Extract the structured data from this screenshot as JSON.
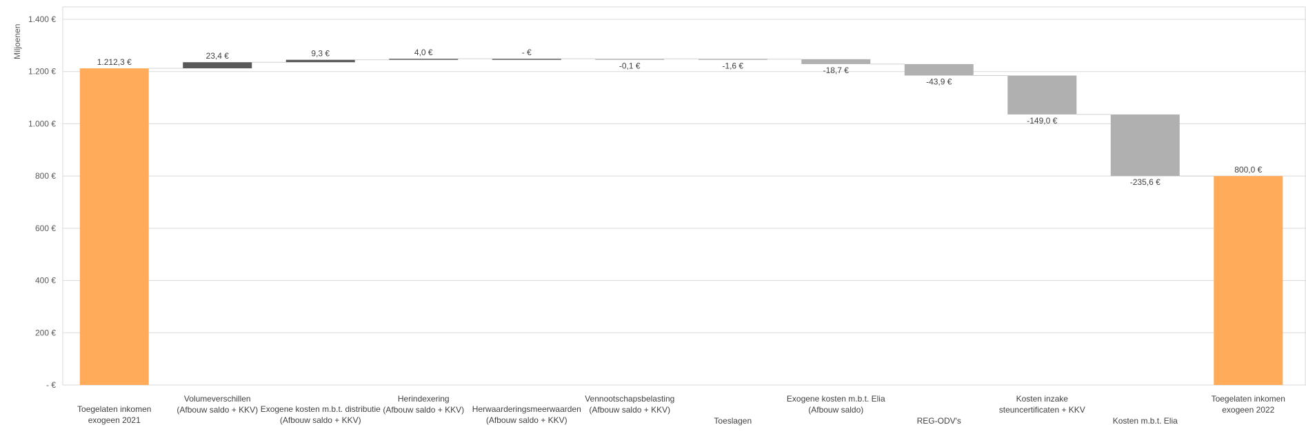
{
  "chart_data": {
    "type": "bar",
    "subtype": "waterfall",
    "title": "",
    "ylabel": "Miljoenen",
    "ylim": [
      0,
      1400
    ],
    "yticks": [
      0,
      200,
      400,
      600,
      800,
      1000,
      1200,
      1400
    ],
    "ytick_labels": [
      "- €",
      "200 €",
      "400 €",
      "600 €",
      "800 €",
      "1.000 €",
      "1.200 €",
      "1.400 €"
    ],
    "grid": true,
    "legend": "none",
    "colors": {
      "total": "#FFAB5A",
      "increase": "#595959",
      "decrease": "#B0B0B0",
      "connector": "#D0D0D0",
      "grid": "#D9D9D9"
    },
    "categories": [
      {
        "lines": [
          "Toegelaten inkomen",
          "exogeen 2021"
        ]
      },
      {
        "lines": [
          "Volumeverschillen",
          "(Afbouw saldo + KKV)"
        ]
      },
      {
        "lines": [
          "Exogene kosten m.b.t. distributie",
          "(Afbouw saldo + KKV)"
        ]
      },
      {
        "lines": [
          "Herindexering",
          "(Afbouw saldo + KKV)"
        ]
      },
      {
        "lines": [
          "Herwaarderingsmeerwaarden",
          "(Afbouw saldo + KKV)"
        ]
      },
      {
        "lines": [
          "Vennootschapsbelasting",
          "(Afbouw saldo + KKV)"
        ]
      },
      {
        "lines": [
          "Toeslagen"
        ]
      },
      {
        "lines": [
          "Exogene kosten m.b.t. Elia",
          "(Afbouw saldo)"
        ]
      },
      {
        "lines": [
          "REG-ODV's"
        ]
      },
      {
        "lines": [
          "Kosten inzake",
          "steuncertificaten + KKV"
        ]
      },
      {
        "lines": [
          "Kosten m.b.t. Elia"
        ]
      },
      {
        "lines": [
          "Toegelaten inkomen",
          "exogeen 2022"
        ]
      }
    ],
    "values": [
      1212.3,
      23.4,
      9.3,
      4.0,
      0,
      -0.1,
      -1.6,
      -18.7,
      -43.9,
      -149.0,
      -235.6,
      800.0
    ],
    "kinds": [
      "total",
      "delta",
      "delta",
      "delta",
      "delta",
      "delta",
      "delta",
      "delta",
      "delta",
      "delta",
      "delta",
      "total"
    ],
    "value_labels": [
      "1.212,3 €",
      "23,4 €",
      "9,3 €",
      "4,0 €",
      "- €",
      "-0,1 €",
      "-1,6 €",
      "-18,7 €",
      "-43,9 €",
      "-149,0 €",
      "-235,6 €",
      "800,0 €"
    ]
  }
}
